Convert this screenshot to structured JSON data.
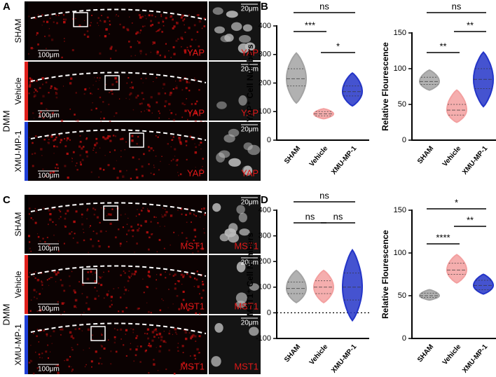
{
  "figure": {
    "image_panels": [
      {
        "letter": "A",
        "group": "DMM",
        "rows": [
          {
            "label": "SHAM",
            "color": "#000000",
            "stain": "YAP",
            "inset_stain": "YAP",
            "scale": "100μm",
            "inset_scale": "20μm"
          },
          {
            "label": "Vehicle",
            "color": "#e0201c",
            "stain": "YAP",
            "inset_stain": "YAP",
            "scale": "100μm",
            "inset_scale": "20μm"
          },
          {
            "label": "XMU-MP-1",
            "color": "#1f3fd6",
            "stain": "YAP",
            "inset_stain": "YAP",
            "scale": "100μm",
            "inset_scale": "20μm"
          }
        ]
      },
      {
        "letter": "C",
        "group": "DMM",
        "rows": [
          {
            "label": "SHAM",
            "color": "#000000",
            "stain": "MST1",
            "inset_stain": "MST1",
            "scale": "100μm",
            "inset_scale": "20μm"
          },
          {
            "label": "Vehicle",
            "color": "#e0201c",
            "stain": "MST1",
            "inset_stain": "MST1",
            "scale": "100μm",
            "inset_scale": "20μm"
          },
          {
            "label": "XMU-MP-1",
            "color": "#1f3fd6",
            "stain": "MST1",
            "inset_stain": "MST1",
            "scale": "100μm",
            "inset_scale": "20μm"
          }
        ]
      }
    ],
    "chart_letters": [
      "B",
      "D"
    ]
  },
  "chart_data": [
    {
      "type": "violin",
      "ylabel": "YAP⁺ Cell Numbers",
      "categories": [
        "SHAM",
        "Vehicle",
        "XMU-MP-1"
      ],
      "ylim": [
        0,
        400
      ],
      "yticks": [
        0,
        100,
        200,
        300,
        400
      ],
      "annotations": [
        "ns",
        "***",
        "*"
      ],
      "violins": [
        {
          "color": "#a3a3a3",
          "min": 130,
          "q1": 190,
          "median": 215,
          "q3": 250,
          "max": 305
        },
        {
          "color": "#f3a0a0",
          "min": 75,
          "q1": 85,
          "median": 92,
          "q3": 100,
          "max": 110
        },
        {
          "color": "#2435c8",
          "min": 120,
          "q1": 155,
          "median": 170,
          "q3": 190,
          "max": 235
        }
      ]
    },
    {
      "type": "violin",
      "ylabel": "Relative Flourescence",
      "categories": [
        "SHAM",
        "Vehicle",
        "XMU-MP-1"
      ],
      "ylim": [
        0,
        150
      ],
      "yticks": [
        0,
        50,
        100,
        150
      ],
      "annotations": [
        "ns",
        "**",
        "**"
      ],
      "violins": [
        {
          "color": "#a3a3a3",
          "min": 70,
          "q1": 78,
          "median": 82,
          "q3": 88,
          "max": 98
        },
        {
          "color": "#f3a0a0",
          "min": 25,
          "q1": 35,
          "median": 42,
          "q3": 50,
          "max": 70
        },
        {
          "color": "#2435c8",
          "min": 47,
          "q1": 72,
          "median": 85,
          "q3": 100,
          "max": 123
        }
      ]
    },
    {
      "type": "violin",
      "ylabel": "MST1⁺ Cell Numbers",
      "categories": [
        "SHAM",
        "Vehicle",
        "XMU-MP-1"
      ],
      "ylim": [
        -100,
        400
      ],
      "yticks": [
        -100,
        0,
        100,
        200,
        300,
        400
      ],
      "zero_line": true,
      "annotations": [
        "ns",
        "ns",
        "ns"
      ],
      "violins": [
        {
          "color": "#a3a3a3",
          "min": 40,
          "q1": 75,
          "median": 95,
          "q3": 120,
          "max": 165
        },
        {
          "color": "#f3a0a0",
          "min": 40,
          "q1": 75,
          "median": 100,
          "q3": 125,
          "max": 165
        },
        {
          "color": "#2435c8",
          "min": -30,
          "q1": 50,
          "median": 100,
          "q3": 155,
          "max": 245
        }
      ]
    },
    {
      "type": "violin",
      "ylabel": "Relative Flourescence",
      "categories": [
        "SHAM",
        "Vehicle",
        "XMU-MP-1"
      ],
      "ylim": [
        0,
        150
      ],
      "yticks": [
        0,
        50,
        100,
        150
      ],
      "annotations": [
        "*",
        "**",
        "****"
      ],
      "violins": [
        {
          "color": "#a3a3a3",
          "min": 45,
          "q1": 48,
          "median": 50,
          "q3": 53,
          "max": 57
        },
        {
          "color": "#f3a0a0",
          "min": 65,
          "q1": 75,
          "median": 80,
          "q3": 88,
          "max": 98
        },
        {
          "color": "#2435c8",
          "min": 52,
          "q1": 57,
          "median": 62,
          "q3": 68,
          "max": 75
        }
      ]
    }
  ]
}
